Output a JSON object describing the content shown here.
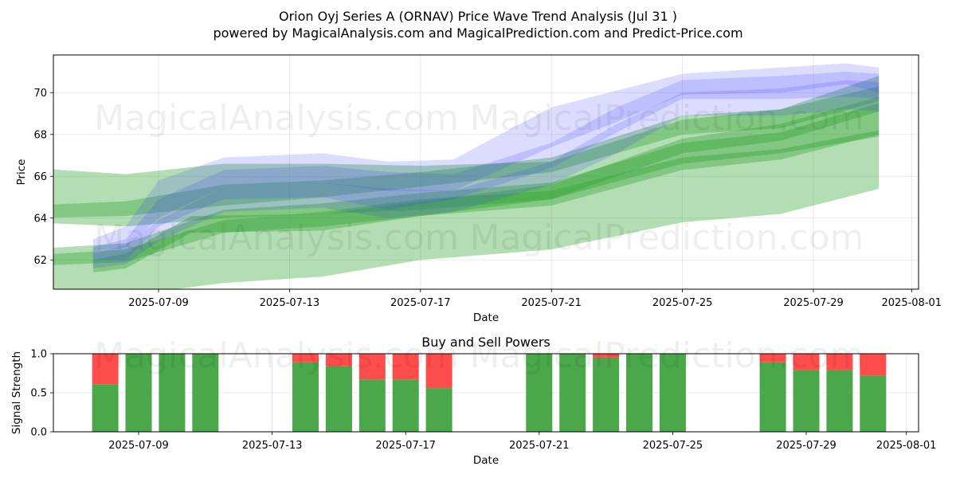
{
  "title_line1": "Orion Oyj Series A (ORNAV) Price Wave Trend Analysis (Jul 31 )",
  "title_line2": "powered by MagicalAnalysis.com and MagicalPrediction.com and Predict-Price.com",
  "watermarks": [
    "MagicalAnalysis.com",
    "MagicalPrediction.com"
  ],
  "colors": {
    "green": "#2ca02c",
    "blue": "#3b3bff",
    "buy": "#4aa84a",
    "sell": "#ff4c4c"
  },
  "chart_data": [
    {
      "type": "area",
      "title": "",
      "xlabel": "Date",
      "ylabel": "Price",
      "ylim": [
        60.6,
        71.8
      ],
      "xlim": [
        "2025-07-05",
        "2025-08-01"
      ],
      "x_ticks": [
        "2025-07-09",
        "2025-07-13",
        "2025-07-17",
        "2025-07-21",
        "2025-07-25",
        "2025-07-29",
        "2025-08-01"
      ],
      "y_ticks": [
        62,
        64,
        66,
        68,
        70
      ],
      "grid": true,
      "series": [
        {
          "color": "green",
          "x": [
            "2025-07-05",
            "2025-07-08",
            "2025-07-11",
            "2025-07-14",
            "2025-07-17",
            "2025-07-21",
            "2025-07-25",
            "2025-07-28",
            "2025-07-31"
          ],
          "upper": [
            62.2,
            62.5,
            63.9,
            64.3,
            64.9,
            65.3,
            66.9,
            67.3,
            68.2
          ],
          "lower": [
            60.5,
            60.3,
            60.9,
            61.2,
            62.0,
            62.5,
            63.8,
            64.2,
            65.4
          ]
        },
        {
          "color": "green",
          "x": [
            "2025-07-05",
            "2025-07-08",
            "2025-07-11",
            "2025-07-14",
            "2025-07-17",
            "2025-07-21",
            "2025-07-25",
            "2025-07-28",
            "2025-07-31"
          ],
          "upper": [
            66.4,
            66.1,
            66.6,
            66.6,
            66.5,
            66.7,
            68.7,
            69.2,
            70.3
          ],
          "lower": [
            63.8,
            63.6,
            64.0,
            64.2,
            64.4,
            64.9,
            66.6,
            67.1,
            67.9
          ]
        },
        {
          "color": "green",
          "x": [
            "2025-07-05",
            "2025-07-08",
            "2025-07-11",
            "2025-07-14",
            "2025-07-17",
            "2025-07-21",
            "2025-07-25",
            "2025-07-28",
            "2025-07-31"
          ],
          "upper": [
            64.6,
            64.8,
            65.6,
            65.8,
            66.2,
            66.9,
            68.9,
            69.2,
            70.8
          ],
          "lower": [
            64.0,
            64.1,
            64.6,
            65.0,
            65.5,
            66.2,
            68.0,
            68.3,
            69.6
          ]
        },
        {
          "color": "green",
          "x": [
            "2025-07-05",
            "2025-07-08",
            "2025-07-11",
            "2025-07-14",
            "2025-07-17",
            "2025-07-21",
            "2025-07-25",
            "2025-07-28",
            "2025-07-31"
          ],
          "upper": [
            62.5,
            62.8,
            64.4,
            64.7,
            65.2,
            65.7,
            67.6,
            68.1,
            69.5
          ],
          "lower": [
            61.7,
            61.9,
            63.3,
            63.6,
            64.1,
            64.6,
            66.3,
            66.8,
            68.0
          ]
        },
        {
          "color": "green",
          "x": [
            "2025-07-07",
            "2025-07-08",
            "2025-07-10",
            "2025-07-14",
            "2025-07-17",
            "2025-07-21",
            "2025-07-25",
            "2025-07-28",
            "2025-07-31"
          ],
          "upper": [
            62.0,
            62.3,
            64.1,
            64.2,
            64.8,
            65.6,
            67.8,
            68.5,
            69.8
          ],
          "lower": [
            61.4,
            61.6,
            63.3,
            63.4,
            64.1,
            64.9,
            67.1,
            67.7,
            69.1
          ]
        },
        {
          "color": "blue",
          "x": [
            "2025-07-07",
            "2025-07-08",
            "2025-07-09",
            "2025-07-11",
            "2025-07-14",
            "2025-07-16",
            "2025-07-18",
            "2025-07-21",
            "2025-07-23",
            "2025-07-25",
            "2025-07-28",
            "2025-07-30",
            "2025-07-31"
          ],
          "upper": [
            63.0,
            63.6,
            65.8,
            66.9,
            67.1,
            66.7,
            66.8,
            69.3,
            70.1,
            70.9,
            71.2,
            71.4,
            71.2
          ],
          "lower": [
            62.4,
            62.6,
            64.0,
            65.5,
            65.7,
            65.3,
            65.3,
            67.4,
            68.6,
            69.9,
            70.0,
            70.4,
            70.0
          ]
        },
        {
          "color": "blue",
          "x": [
            "2025-07-07",
            "2025-07-08",
            "2025-07-09",
            "2025-07-11",
            "2025-07-14",
            "2025-07-16",
            "2025-07-18",
            "2025-07-21",
            "2025-07-23",
            "2025-07-25",
            "2025-07-28",
            "2025-07-30",
            "2025-07-31"
          ],
          "upper": [
            62.6,
            63.0,
            64.9,
            66.3,
            66.5,
            66.2,
            66.1,
            67.6,
            69.3,
            70.6,
            70.8,
            71.0,
            70.9
          ],
          "lower": [
            62.0,
            62.0,
            63.6,
            64.9,
            65.0,
            64.4,
            64.9,
            66.4,
            68.1,
            69.7,
            69.7,
            69.8,
            69.7
          ]
        },
        {
          "color": "blue",
          "x": [
            "2025-07-07",
            "2025-07-08",
            "2025-07-09",
            "2025-07-11",
            "2025-07-14",
            "2025-07-16",
            "2025-07-18",
            "2025-07-21",
            "2025-07-23",
            "2025-07-25",
            "2025-07-28",
            "2025-07-30",
            "2025-07-31"
          ],
          "upper": [
            62.3,
            62.7,
            63.9,
            65.5,
            65.7,
            65.4,
            65.3,
            66.7,
            68.5,
            70.0,
            70.2,
            70.6,
            70.5
          ],
          "lower": [
            61.6,
            61.8,
            62.9,
            64.3,
            64.5,
            64.0,
            64.3,
            65.6,
            67.1,
            68.9,
            68.9,
            69.2,
            69.1
          ]
        }
      ]
    },
    {
      "type": "bar",
      "title": "Buy and Sell Powers",
      "xlabel": "Date",
      "ylabel": "Signal Strength",
      "ylim": [
        0.0,
        1.0
      ],
      "y_ticks": [
        "0.0",
        "0.5",
        "1.0"
      ],
      "x_ticks": [
        "2025-07-09",
        "2025-07-13",
        "2025-07-17",
        "2025-07-21",
        "2025-07-25",
        "2025-07-29",
        "2025-08-01"
      ],
      "grid": true,
      "categories": [
        "2025-07-08",
        "2025-07-09",
        "2025-07-10",
        "2025-07-11",
        "2025-07-14",
        "2025-07-15",
        "2025-07-16",
        "2025-07-17",
        "2025-07-18",
        "2025-07-21",
        "2025-07-22",
        "2025-07-23",
        "2025-07-24",
        "2025-07-25",
        "2025-07-28",
        "2025-07-29",
        "2025-07-30",
        "2025-07-31"
      ],
      "series": [
        {
          "color": "buy",
          "values": [
            0.61,
            1.0,
            1.0,
            1.0,
            0.89,
            0.84,
            0.67,
            0.67,
            0.56,
            1.0,
            1.0,
            0.95,
            1.0,
            1.0,
            0.89,
            0.79,
            0.79,
            0.72
          ]
        },
        {
          "color": "sell",
          "values": [
            0.39,
            0.0,
            0.0,
            0.0,
            0.11,
            0.16,
            0.33,
            0.33,
            0.44,
            0.0,
            0.0,
            0.05,
            0.0,
            0.0,
            0.11,
            0.21,
            0.21,
            0.28
          ]
        }
      ]
    }
  ]
}
